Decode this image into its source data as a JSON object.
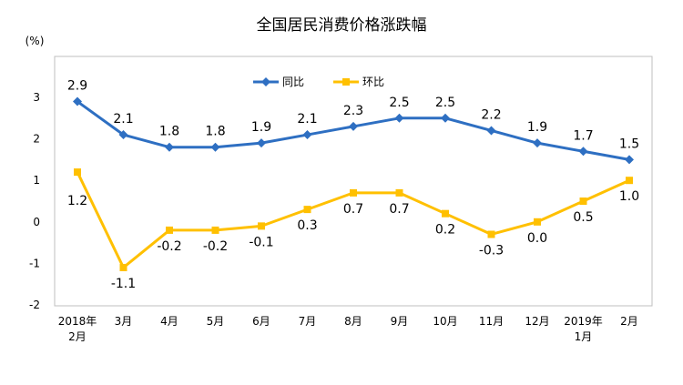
{
  "chart_data": {
    "type": "line",
    "title": "全国居民消费价格涨跌幅",
    "unit": "(%)",
    "categories": [
      [
        "2018年",
        "2月"
      ],
      [
        "3月"
      ],
      [
        "4月"
      ],
      [
        "5月"
      ],
      [
        "6月"
      ],
      [
        "7月"
      ],
      [
        "8月"
      ],
      [
        "9月"
      ],
      [
        "10月"
      ],
      [
        "11月"
      ],
      [
        "12月"
      ],
      [
        "2019年",
        "1月"
      ],
      [
        "2月"
      ]
    ],
    "y_ticks": [
      "3",
      "2",
      "1",
      "0",
      "-1",
      "-2"
    ],
    "ylim": [
      -2,
      3
    ],
    "legend_position": "top-center",
    "grid": false,
    "series": [
      {
        "name": "同比",
        "color": "#2e6fc2",
        "marker": "diamond",
        "values": [
          2.9,
          2.1,
          1.8,
          1.8,
          1.9,
          2.1,
          2.3,
          2.5,
          2.5,
          2.2,
          1.9,
          1.7,
          1.5
        ],
        "labels": [
          "2.9",
          "2.1",
          "1.8",
          "1.8",
          "1.9",
          "2.1",
          "2.3",
          "2.5",
          "2.5",
          "2.2",
          "1.9",
          "1.7",
          "1.5"
        ]
      },
      {
        "name": "环比",
        "color": "#ffc000",
        "marker": "square",
        "values": [
          1.2,
          -1.1,
          -0.2,
          -0.2,
          -0.1,
          0.3,
          0.7,
          0.7,
          0.2,
          -0.3,
          0.0,
          0.5,
          1.0
        ],
        "labels": [
          "1.2",
          "-1.1",
          "-0.2",
          "-0.2",
          "-0.1",
          "0.3",
          "0.7",
          "0.7",
          "0.2",
          "-0.3",
          "0.0",
          "0.5",
          "1.0"
        ]
      }
    ]
  }
}
